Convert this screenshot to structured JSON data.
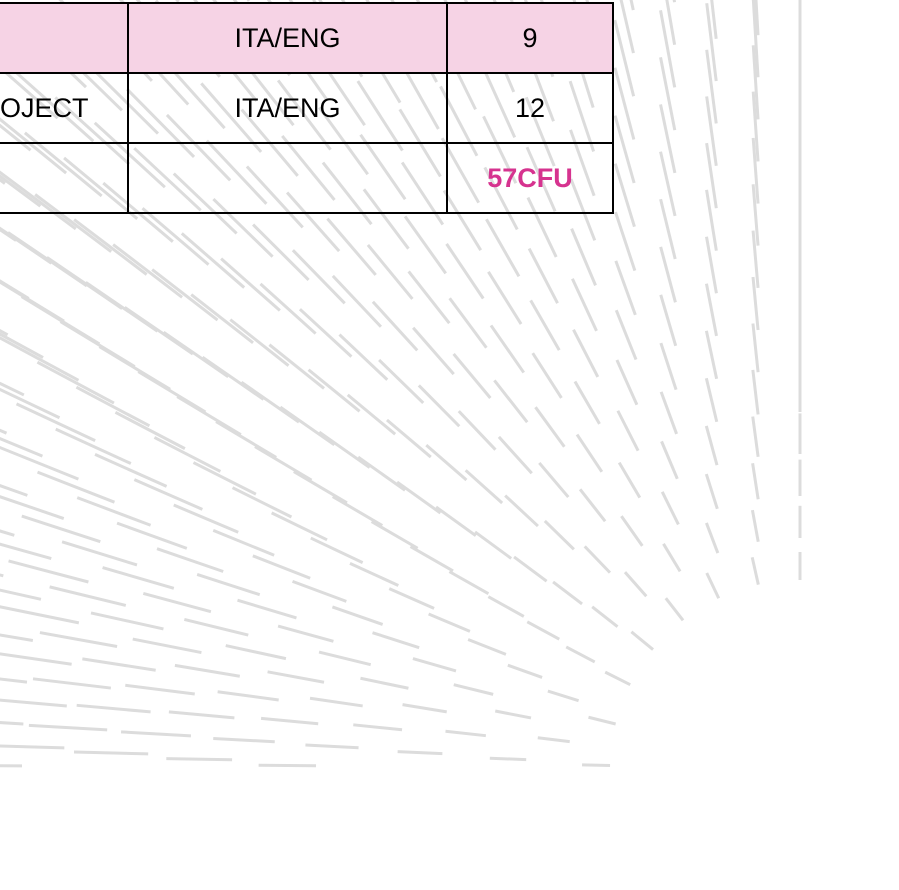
{
  "table": {
    "rows": [
      {
        "language": "ITA/ENG",
        "credits": "9"
      },
      {
        "course": "OJECT",
        "language": "ITA/ENG",
        "credits": "12"
      },
      {
        "total": "57CFU"
      }
    ]
  }
}
